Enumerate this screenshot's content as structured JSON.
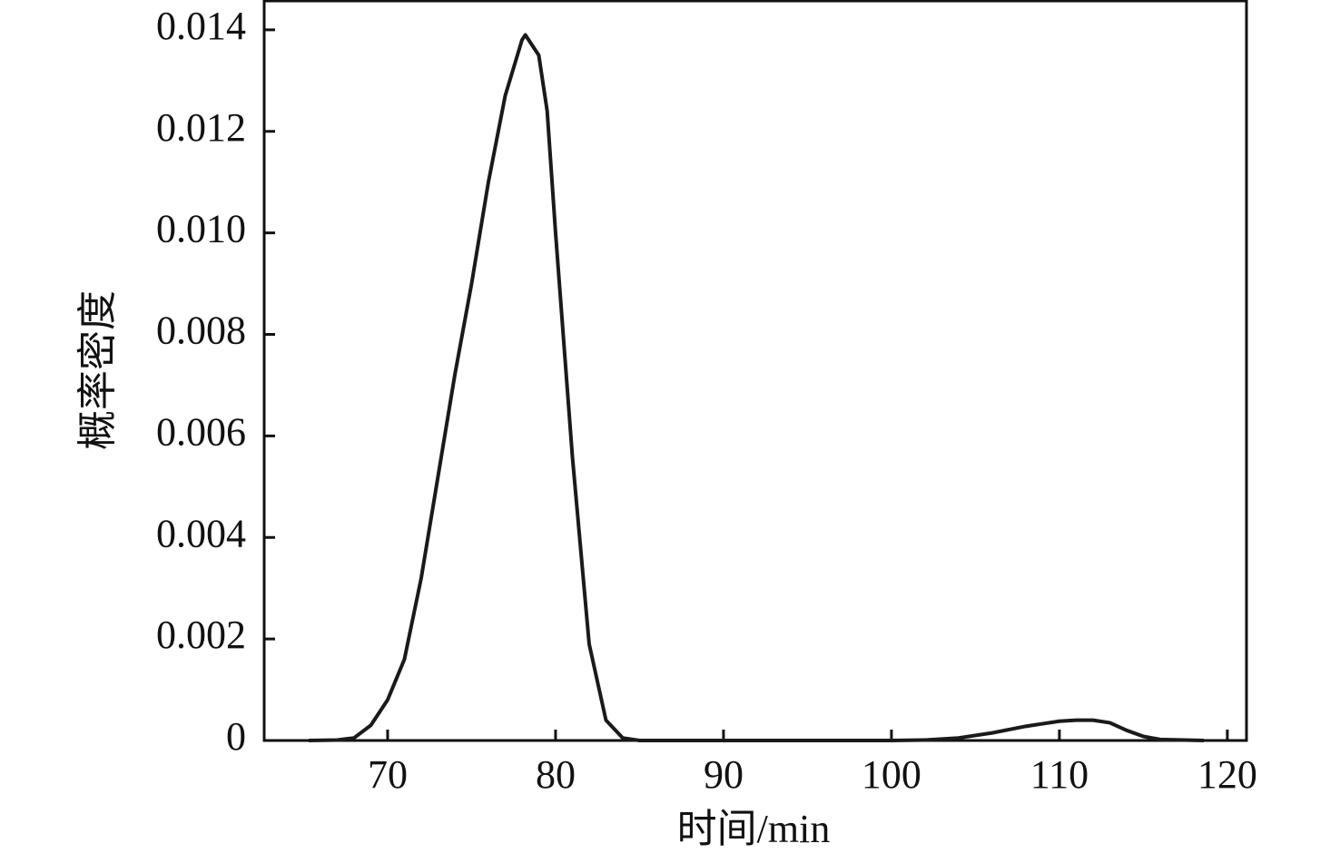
{
  "chart_data": {
    "type": "line",
    "x_label": "时间/min",
    "y_label": "概率密度",
    "x": [
      65.3,
      67,
      68,
      69,
      70,
      71,
      72,
      73,
      74,
      75,
      76,
      77,
      78,
      78.2,
      79,
      79.5,
      80,
      81,
      82,
      83,
      84,
      85,
      90,
      100,
      102,
      104,
      106,
      108,
      110,
      111,
      112,
      113,
      114,
      115,
      116,
      118.6
    ],
    "series": [
      {
        "color": "#1a1a1a",
        "values": [
          0,
          1e-05,
          5e-05,
          0.0003,
          0.0008,
          0.0016,
          0.0032,
          0.0052,
          0.0072,
          0.009,
          0.011,
          0.0127,
          0.0138,
          0.0139,
          0.0135,
          0.0124,
          0.01,
          0.0056,
          0.0019,
          0.0004,
          5e-05,
          0,
          0,
          0,
          1e-05,
          5e-05,
          0.00015,
          0.00028,
          0.00038,
          0.0004,
          0.0004,
          0.00035,
          0.0002,
          8e-05,
          2e-05,
          0
        ]
      }
    ],
    "xlim": [
      62.65,
      121.14
    ],
    "ylim": [
      0,
      0.01457
    ],
    "xticks": [
      70,
      80,
      90,
      100,
      110,
      120
    ],
    "yticks": [
      0,
      0.002,
      0.004,
      0.006,
      0.008,
      {
        "value": 0.01,
        "label": "0.010"
      },
      0.012,
      0.014
    ]
  }
}
